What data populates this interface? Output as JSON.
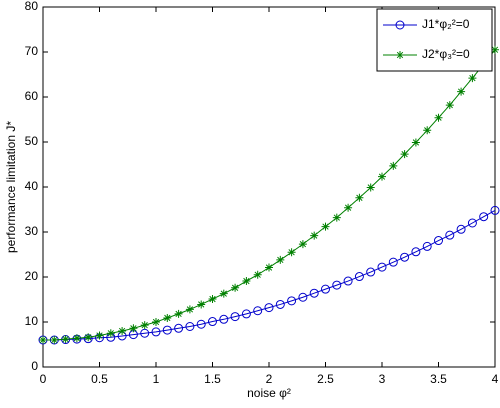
{
  "chart_data": {
    "type": "line",
    "xlabel": "noise φ²",
    "ylabel": "performance limitation J*",
    "x": [
      0,
      0.1,
      0.2,
      0.3,
      0.4,
      0.5,
      0.6,
      0.7,
      0.8,
      0.9,
      1,
      1.1,
      1.2,
      1.3,
      1.4,
      1.5,
      1.6,
      1.7,
      1.8,
      1.9,
      2,
      2.1,
      2.2,
      2.3,
      2.4,
      2.5,
      2.6,
      2.7,
      2.8,
      2.9,
      3,
      3.1,
      3.2,
      3.3,
      3.4,
      3.5,
      3.6,
      3.7,
      3.8,
      3.9,
      4
    ],
    "series": [
      {
        "name": "J1*φ₂²=0",
        "color": "#0000cc",
        "marker": "circle",
        "values": [
          6.0,
          6.0,
          6.1,
          6.2,
          6.3,
          6.5,
          6.6,
          6.9,
          7.2,
          7.5,
          7.8,
          8.2,
          8.6,
          9.0,
          9.5,
          10.1,
          10.6,
          11.2,
          11.8,
          12.5,
          13.2,
          13.9,
          14.7,
          15.5,
          16.4,
          17.3,
          18.2,
          19.1,
          20.1,
          21.1,
          22.2,
          23.3,
          24.4,
          25.6,
          26.8,
          28.1,
          29.3,
          30.6,
          32.0,
          33.4,
          34.8
        ]
      },
      {
        "name": "J2*φ₃²=0",
        "color": "#008000",
        "marker": "asterisk",
        "values": [
          6.0,
          6.0,
          6.2,
          6.4,
          6.6,
          7.0,
          7.5,
          8.0,
          8.6,
          9.3,
          10.0,
          10.9,
          11.8,
          12.8,
          13.9,
          15.1,
          16.3,
          17.6,
          19.1,
          20.5,
          22.1,
          23.8,
          25.5,
          27.3,
          29.2,
          31.2,
          33.2,
          35.4,
          37.6,
          39.9,
          42.3,
          44.7,
          47.3,
          49.9,
          52.6,
          55.4,
          58.2,
          61.2,
          64.2,
          67.3,
          70.5
        ]
      }
    ],
    "xlim": [
      0,
      4
    ],
    "xticks": [
      0,
      0.5,
      1,
      1.5,
      2,
      2.5,
      3,
      3.5,
      4
    ],
    "ylim": [
      0,
      80
    ],
    "yticks": [
      0,
      10,
      20,
      30,
      40,
      50,
      60,
      70,
      80
    ],
    "legend": "upper right"
  }
}
